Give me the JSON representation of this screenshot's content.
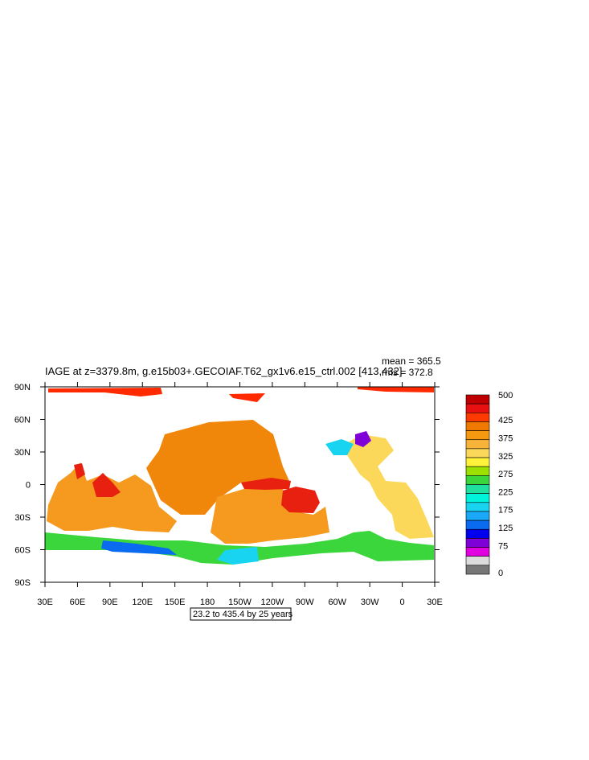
{
  "title": "IAGE at z=3379.8m, g.e15b03+.GECOIAF.T62_gx1v6.e15_ctrl.002 [413,432]",
  "stats": {
    "mean": "mean = 365.5",
    "rms": "rms = 372.8"
  },
  "contour_note": "23.2 to 435.4 by 25 years",
  "axes": {
    "x_ticks": [
      "30E",
      "60E",
      "90E",
      "120E",
      "150E",
      "180",
      "150W",
      "120W",
      "90W",
      "60W",
      "30W",
      "0",
      "30E"
    ],
    "y_ticks": [
      "90N",
      "60N",
      "30N",
      "0",
      "30S",
      "60S",
      "90S"
    ]
  },
  "colorbar": {
    "labels": [
      "500",
      "425",
      "375",
      "325",
      "275",
      "225",
      "175",
      "125",
      "75",
      "0"
    ],
    "colors": [
      "#c00000",
      "#e81010",
      "#ff3a00",
      "#f07a00",
      "#f59a10",
      "#f8b43a",
      "#fcd85a",
      "#fff23a",
      "#9be000",
      "#3bd63b",
      "#20e0a0",
      "#00f4dc",
      "#18d4f0",
      "#1aa8f8",
      "#0a6af0",
      "#0000ee",
      "#8000d8",
      "#e000e0",
      "#dcdcdc",
      "#777777"
    ]
  },
  "regions": [
    {
      "name": "arctic-strip",
      "color": "#ff2a00"
    },
    {
      "name": "north-pacific",
      "color": "#f0870a"
    },
    {
      "name": "south-pacific",
      "color": "#f59a1e"
    },
    {
      "name": "indian-ocean",
      "color": "#f59a1e"
    },
    {
      "name": "arabian-sea",
      "color": "#e82010"
    },
    {
      "name": "east-pacific",
      "color": "#e82010"
    },
    {
      "name": "atlantic",
      "color": "#fcd85a"
    },
    {
      "name": "southern-ocean",
      "color": "#3bd63b"
    },
    {
      "name": "weddell",
      "color": "#18d4f0"
    },
    {
      "name": "labrador",
      "color": "#8000d8"
    }
  ]
}
